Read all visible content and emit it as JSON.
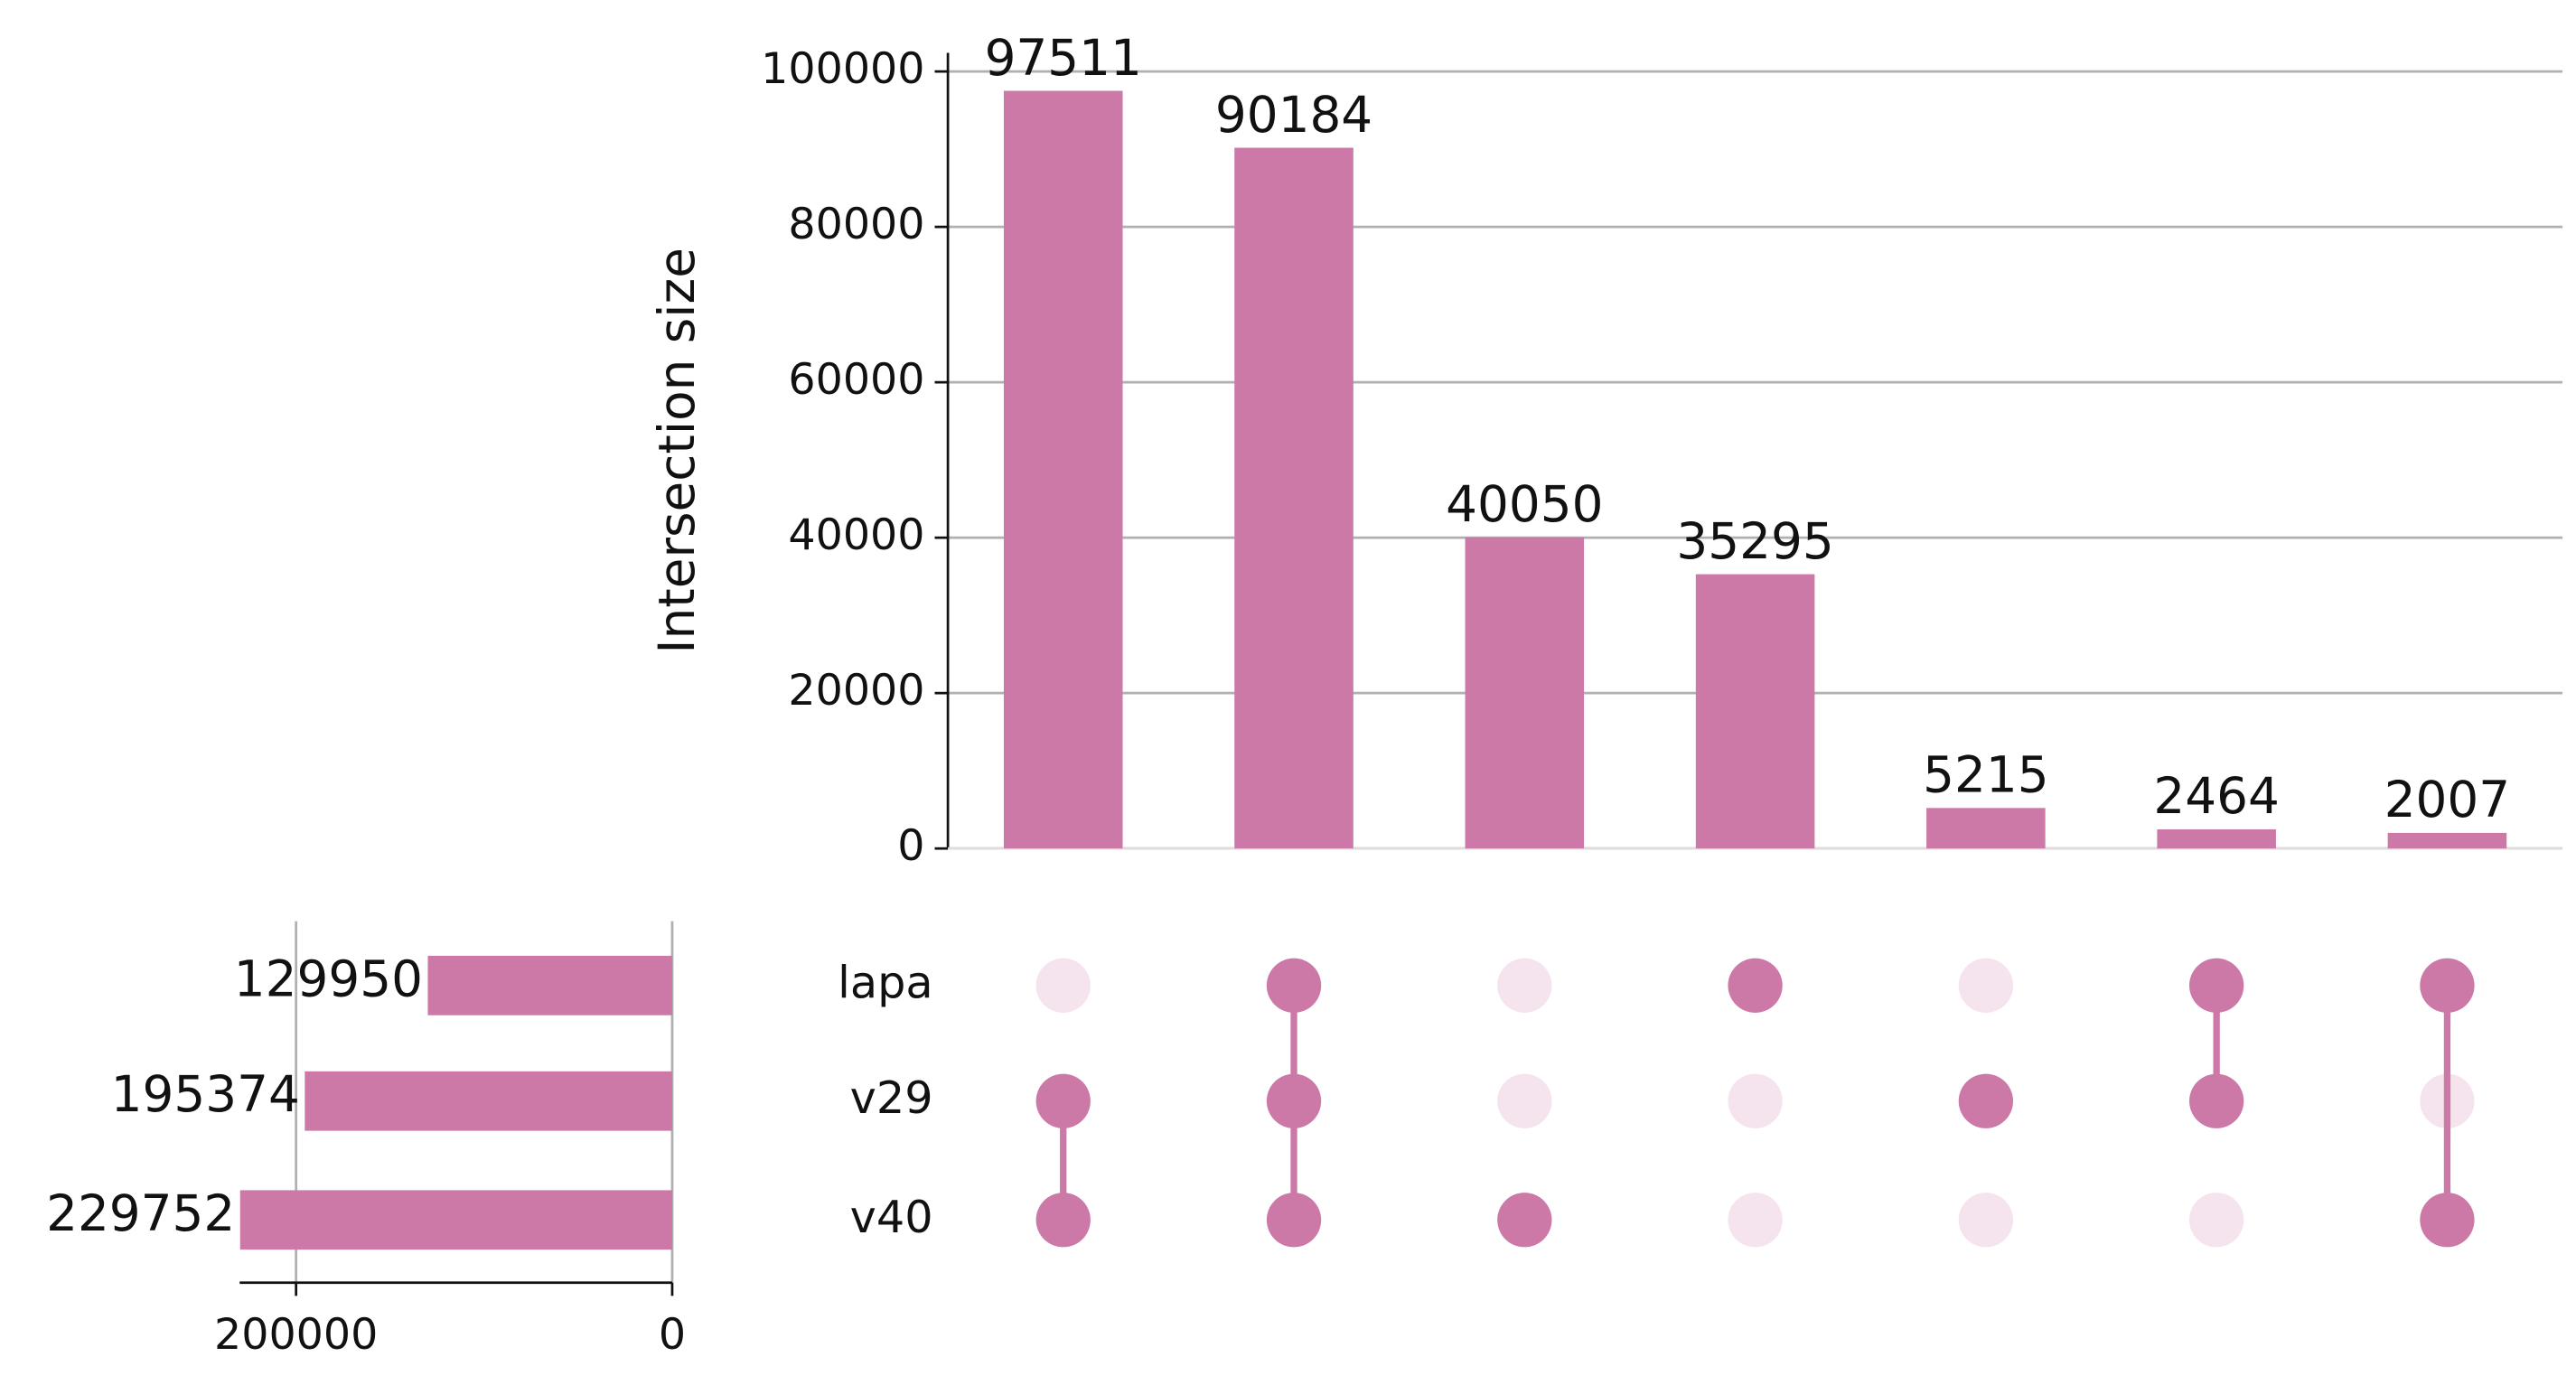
{
  "chart_data": {
    "type": "upset",
    "ylabel": "Intersection size",
    "values": [
      97511,
      90184,
      40050,
      35295,
      5215,
      2464,
      2007
    ],
    "color": "#cc79a7",
    "inactive_color": "#f5e3ed",
    "ylim": [
      0,
      102400
    ],
    "yticks": [
      0,
      20000,
      40000,
      60000,
      80000,
      100000
    ],
    "grid": true,
    "sets": [
      "lapa",
      "v29",
      "v40"
    ],
    "set_sizes": [
      129950,
      195374,
      229752
    ],
    "membership": [
      [
        0,
        1,
        1
      ],
      [
        1,
        1,
        1
      ],
      [
        0,
        0,
        1
      ],
      [
        1,
        0,
        0
      ],
      [
        0,
        1,
        0
      ],
      [
        1,
        1,
        0
      ],
      [
        1,
        0,
        1
      ]
    ],
    "set_xlim": [
      0,
      230000
    ],
    "set_xticks": [
      0,
      200000
    ]
  }
}
